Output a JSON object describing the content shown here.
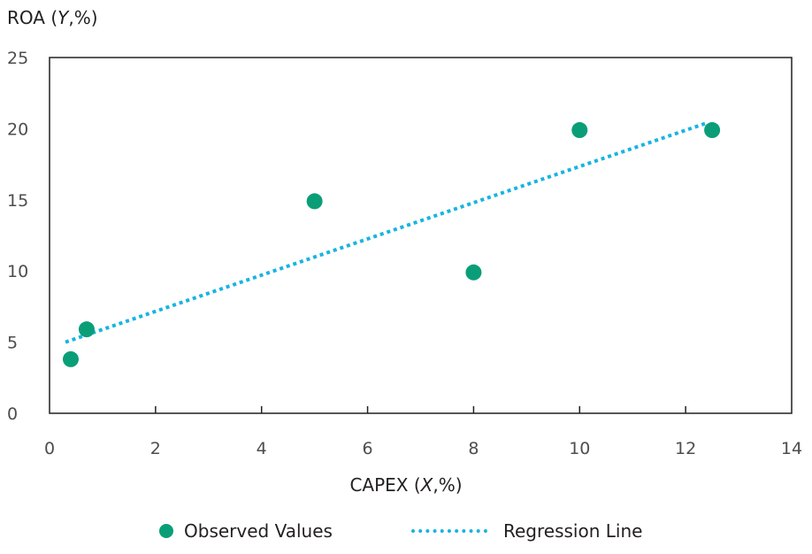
{
  "chart_data": {
    "type": "scatter",
    "title": "",
    "xlabel": "CAPEX (X,%)",
    "ylabel": "ROA (Y,%)",
    "xlim": [
      0,
      14
    ],
    "ylim": [
      0,
      25
    ],
    "x_ticks": [
      0,
      2,
      4,
      6,
      8,
      10,
      12,
      14
    ],
    "y_ticks": [
      0,
      5,
      10,
      15,
      20,
      25
    ],
    "grid": false,
    "legend_position": "bottom",
    "series": [
      {
        "name": "Observed Values",
        "kind": "scatter",
        "color": "#0a9e78",
        "points": [
          {
            "x": 0.4,
            "y": 3.8
          },
          {
            "x": 0.7,
            "y": 5.9
          },
          {
            "x": 5.0,
            "y": 14.9
          },
          {
            "x": 8.0,
            "y": 9.9
          },
          {
            "x": 10.0,
            "y": 19.9
          },
          {
            "x": 12.5,
            "y": 19.9
          }
        ]
      },
      {
        "name": "Regression Line",
        "kind": "line",
        "style": "dotted",
        "color": "#18b4e0",
        "points": [
          {
            "x": 0.3,
            "y": 5.0
          },
          {
            "x": 12.4,
            "y": 20.4
          }
        ]
      }
    ]
  }
}
